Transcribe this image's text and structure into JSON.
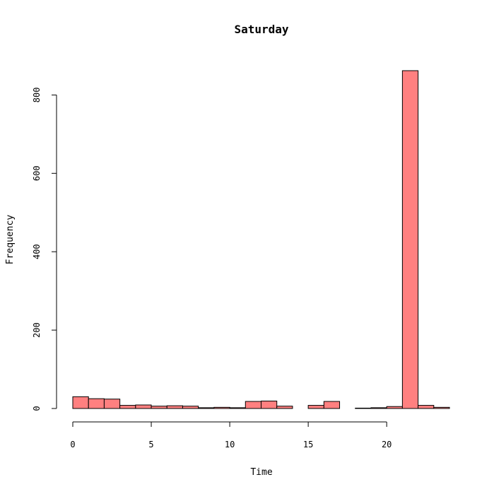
{
  "chart_data": {
    "type": "bar",
    "title": "Saturday",
    "xlabel": "Time",
    "ylabel": "Frequency",
    "bin_width": 1,
    "bin_edges_start": 0,
    "values": [
      30,
      25,
      24,
      8,
      9,
      6,
      7,
      6,
      2,
      3,
      2,
      18,
      19,
      6,
      0,
      8,
      18,
      0,
      1,
      2,
      5,
      862,
      8,
      3
    ],
    "xlim": [
      0,
      24
    ],
    "ylim": [
      0,
      862
    ],
    "x_ticks": [
      0,
      5,
      10,
      15,
      20
    ],
    "y_ticks": [
      0,
      200,
      400,
      600,
      800
    ],
    "x_tick_labels": [
      "0",
      "5",
      "10",
      "15",
      "20"
    ],
    "y_tick_labels": [
      "0",
      "200",
      "400",
      "600",
      "800"
    ],
    "bar_color": "#ff8080",
    "grid": false,
    "legend": "none"
  }
}
